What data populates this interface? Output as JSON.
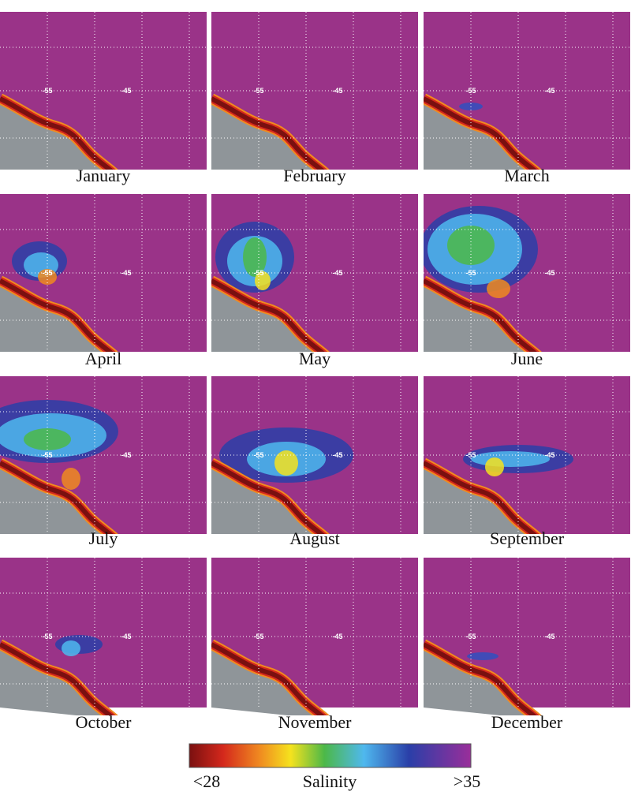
{
  "panels": [
    {
      "month": "January"
    },
    {
      "month": "February"
    },
    {
      "month": "March"
    },
    {
      "month": "April"
    },
    {
      "month": "May"
    },
    {
      "month": "June"
    },
    {
      "month": "July"
    },
    {
      "month": "August"
    },
    {
      "month": "September"
    },
    {
      "month": "October"
    },
    {
      "month": "November"
    },
    {
      "month": "December"
    }
  ],
  "grid_labels": [
    "-55",
    "-45"
  ],
  "colorbar": {
    "min_label": "<28",
    "title": "Salinity",
    "max_label": ">35"
  }
}
